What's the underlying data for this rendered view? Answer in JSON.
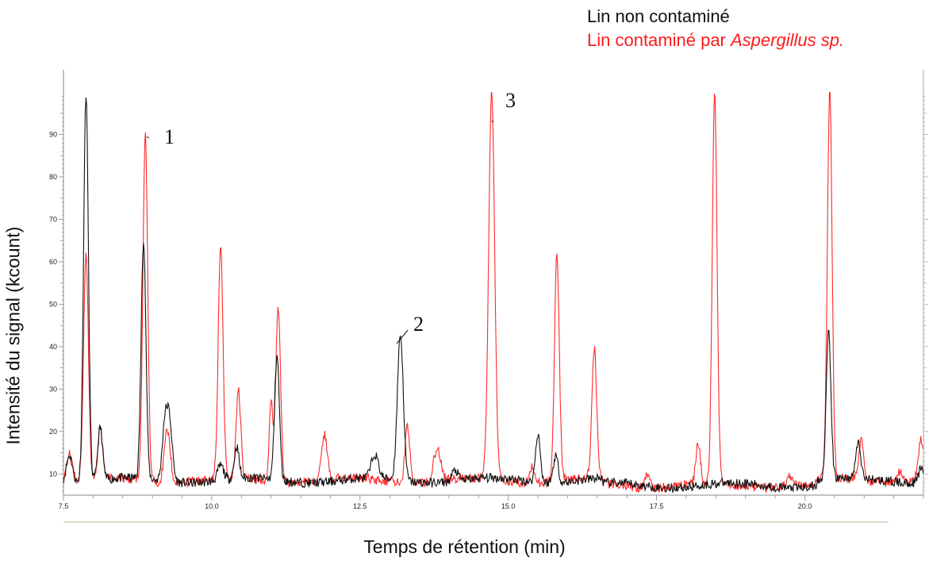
{
  "legend": {
    "series1": "Lin non contaminé",
    "series2_prefix": "Lin contaminé par ",
    "series2_italic": "Aspergillus sp."
  },
  "chart_data": {
    "type": "line",
    "xlabel": "Temps de rétention (min)",
    "ylabel": "Intensité du signal (kcount)",
    "xlim": [
      7.5,
      22.0
    ],
    "ylim": [
      5,
      100
    ],
    "x_ticks": [
      "7.5",
      "10.0",
      "12.5",
      "15.0",
      "17.5",
      "20.0"
    ],
    "x_tick_values": [
      7.5,
      10.0,
      12.5,
      15.0,
      17.5,
      20.0
    ],
    "y_ticks": [
      "10",
      "20",
      "30",
      "40",
      "50",
      "60",
      "70",
      "80",
      "90"
    ],
    "y_tick_values": [
      10,
      20,
      30,
      40,
      50,
      60,
      70,
      80,
      90
    ],
    "annotations": [
      {
        "text": "1",
        "x": 8.9,
        "y": 90
      },
      {
        "text": "2",
        "x": 13.2,
        "y": 43
      },
      {
        "text": "3",
        "x": 14.75,
        "y": 100
      }
    ],
    "series": [
      {
        "color": "#111111",
        "baseline": 8.5,
        "peaks": [
          [
            7.6,
            15,
            0.05
          ],
          [
            7.88,
            100,
            0.04
          ],
          [
            8.12,
            21,
            0.04
          ],
          [
            8.85,
            65,
            0.04
          ],
          [
            9.2,
            19,
            0.04
          ],
          [
            9.28,
            24,
            0.05
          ],
          [
            10.42,
            16,
            0.04
          ],
          [
            10.15,
            12,
            0.05
          ],
          [
            11.1,
            38,
            0.04
          ],
          [
            12.75,
            14,
            0.06
          ],
          [
            13.18,
            43,
            0.05
          ],
          [
            14.1,
            11,
            0.05
          ],
          [
            15.5,
            20,
            0.04
          ],
          [
            15.8,
            15,
            0.04
          ],
          [
            20.4,
            43,
            0.04
          ],
          [
            20.9,
            17,
            0.04
          ],
          [
            21.96,
            12,
            0.04
          ]
        ]
      },
      {
        "color": "#ff2a2a",
        "baseline": 8.5,
        "peaks": [
          [
            7.6,
            15,
            0.05
          ],
          [
            7.88,
            62,
            0.04
          ],
          [
            8.12,
            20,
            0.04
          ],
          [
            8.88,
            90,
            0.04
          ],
          [
            9.25,
            21,
            0.05
          ],
          [
            10.15,
            64,
            0.04
          ],
          [
            10.45,
            29,
            0.04
          ],
          [
            11.0,
            27,
            0.03
          ],
          [
            11.12,
            50,
            0.04
          ],
          [
            11.9,
            19,
            0.05
          ],
          [
            13.3,
            22,
            0.04
          ],
          [
            13.8,
            16,
            0.06
          ],
          [
            14.72,
            100,
            0.05
          ],
          [
            15.4,
            12,
            0.04
          ],
          [
            15.82,
            62,
            0.04
          ],
          [
            16.45,
            39,
            0.04
          ],
          [
            17.35,
            12,
            0.04
          ],
          [
            18.2,
            18,
            0.04
          ],
          [
            18.48,
            100,
            0.04
          ],
          [
            19.75,
            11,
            0.05
          ],
          [
            20.42,
            100,
            0.04
          ],
          [
            20.95,
            18,
            0.04
          ],
          [
            21.6,
            11,
            0.04
          ],
          [
            21.96,
            18,
            0.05
          ]
        ]
      }
    ]
  }
}
